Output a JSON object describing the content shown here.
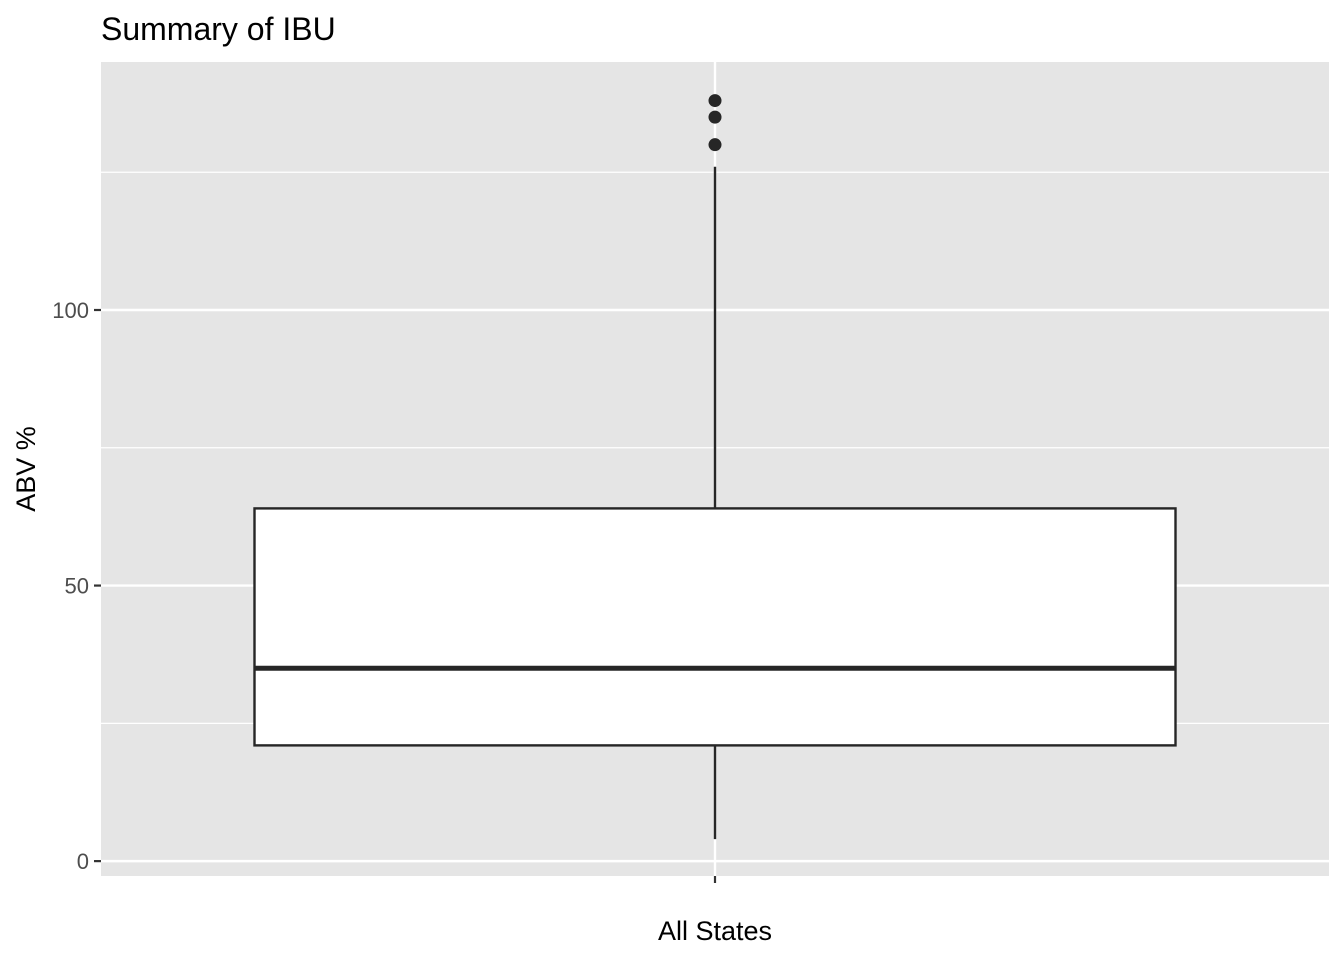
{
  "chart_data": {
    "type": "boxplot",
    "title": "Summary of IBU",
    "xlabel": "",
    "ylabel": "ABV %",
    "categories": [
      "All States"
    ],
    "yticks": [
      0,
      50,
      100
    ],
    "ytick_labels": [
      "0",
      "50",
      "100"
    ],
    "ylim": [
      -2.7,
      145
    ],
    "grid": true,
    "boxes": [
      {
        "category": "All States",
        "whisker_low": 4,
        "q1": 21,
        "median": 35,
        "q3": 64,
        "whisker_high": 126,
        "outliers": [
          130,
          135,
          138
        ]
      }
    ],
    "colors": {
      "panel_background": "#e5e5e5",
      "grid": "#ffffff",
      "box_fill": "#ffffff",
      "box_stroke": "#262626",
      "outlier": "#262626"
    }
  }
}
